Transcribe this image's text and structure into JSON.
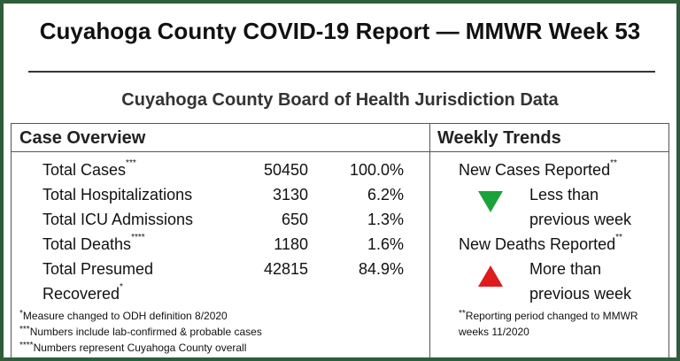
{
  "header": {
    "title": "Cuyahoga County COVID-19 Report — MMWR Week 53",
    "subtitle": "Cuyahoga County Board of Health Jurisdiction Data"
  },
  "case_overview": {
    "heading": "Case Overview",
    "rows": [
      {
        "label": "Total Cases",
        "note": "***",
        "count": 50450,
        "percent": "100.0%"
      },
      {
        "label": "Total Hospitalizations",
        "count": 3130,
        "percent": "6.2%"
      },
      {
        "label": "Total ICU Admissions",
        "count": 650,
        "percent": "1.3%"
      },
      {
        "label": "Total Deaths",
        "note": "****",
        "count": 1180,
        "percent": "1.6%"
      },
      {
        "label": "Total Presumed Recovered",
        "note": "*",
        "count": 42815,
        "percent": "84.9%"
      }
    ],
    "footnotes": [
      {
        "marker": "*",
        "text": "Measure changed to ODH definition 8/2020"
      },
      {
        "marker": "***",
        "text": "Numbers include lab-confirmed & probable cases"
      },
      {
        "marker": "****",
        "text": "Numbers represent Cuyahoga County overall"
      }
    ]
  },
  "weekly_trends": {
    "heading": "Weekly Trends",
    "items": [
      {
        "label": "New Cases Reported",
        "note": "**",
        "trend": "down",
        "color": "#1aa33a",
        "text": "Less than previous week"
      },
      {
        "label": "New Deaths Reported",
        "note": "**",
        "trend": "up",
        "color": "#e01b1b",
        "text": "More than previous week"
      }
    ],
    "footnotes": [
      {
        "marker": "**",
        "text": "Reporting period changed to MMWR weeks 11/2020"
      }
    ]
  }
}
